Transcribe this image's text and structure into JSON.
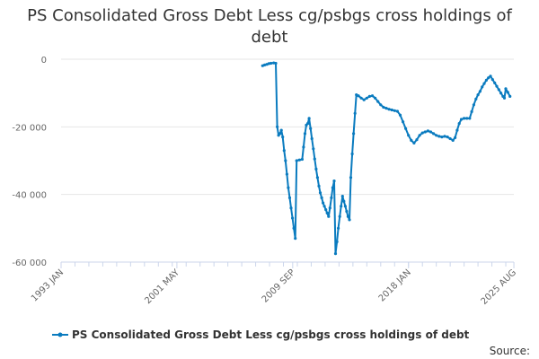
{
  "chart_data": {
    "type": "line",
    "title": "PS Consolidated Gross Debt Less cg/psbgs cross holdings of debt",
    "xlabel": "",
    "ylabel": "",
    "x_ticks": [
      "1993 JAN",
      "2001 MAY",
      "2009 SEP",
      "2018 JAN",
      "2025 AUG"
    ],
    "x_range": [
      1993.0,
      2025.58
    ],
    "ylim": [
      -60000,
      0
    ],
    "y_ticks": [
      0,
      -20000,
      -40000,
      -60000
    ],
    "y_tick_labels": [
      "0",
      "-20 000",
      "-40 000",
      "-60 000"
    ],
    "grid": "horizontal",
    "legend": "bottom",
    "source": "Source:",
    "series": [
      {
        "name": "PS Consolidated Gross Debt Less cg/psbgs cross holdings of debt",
        "color": "#0a7bbf",
        "points": [
          [
            2007.5,
            -1900
          ],
          [
            2007.65,
            -1700
          ],
          [
            2007.8,
            -1500
          ],
          [
            2007.95,
            -1300
          ],
          [
            2008.1,
            -1200
          ],
          [
            2008.3,
            -1100
          ],
          [
            2008.45,
            -1200
          ],
          [
            2008.55,
            -20000
          ],
          [
            2008.65,
            -22500
          ],
          [
            2008.75,
            -22000
          ],
          [
            2008.85,
            -21000
          ],
          [
            2008.95,
            -23000
          ],
          [
            2009.05,
            -27000
          ],
          [
            2009.15,
            -30000
          ],
          [
            2009.25,
            -34000
          ],
          [
            2009.35,
            -38000
          ],
          [
            2009.45,
            -41000
          ],
          [
            2009.55,
            -44000
          ],
          [
            2009.65,
            -47000
          ],
          [
            2009.75,
            -50000
          ],
          [
            2009.85,
            -53000
          ],
          [
            2009.95,
            -30000
          ],
          [
            2010.15,
            -29800
          ],
          [
            2010.35,
            -29600
          ],
          [
            2010.45,
            -26000
          ],
          [
            2010.55,
            -22000
          ],
          [
            2010.65,
            -19500
          ],
          [
            2010.75,
            -19000
          ],
          [
            2010.85,
            -17500
          ],
          [
            2010.95,
            -20500
          ],
          [
            2011.05,
            -23500
          ],
          [
            2011.15,
            -26500
          ],
          [
            2011.25,
            -29500
          ],
          [
            2011.35,
            -32500
          ],
          [
            2011.45,
            -35000
          ],
          [
            2011.55,
            -37500
          ],
          [
            2011.65,
            -39500
          ],
          [
            2011.75,
            -41000
          ],
          [
            2011.85,
            -42500
          ],
          [
            2011.95,
            -43500
          ],
          [
            2012.05,
            -44500
          ],
          [
            2012.15,
            -45500
          ],
          [
            2012.25,
            -46500
          ],
          [
            2012.35,
            -44000
          ],
          [
            2012.45,
            -41000
          ],
          [
            2012.55,
            -38000
          ],
          [
            2012.65,
            -36000
          ],
          [
            2012.75,
            -57500
          ],
          [
            2012.85,
            -54000
          ],
          [
            2012.95,
            -50000
          ],
          [
            2013.05,
            -46500
          ],
          [
            2013.15,
            -43500
          ],
          [
            2013.25,
            -40500
          ],
          [
            2013.35,
            -42000
          ],
          [
            2013.45,
            -43500
          ],
          [
            2013.55,
            -45000
          ],
          [
            2013.65,
            -46500
          ],
          [
            2013.75,
            -47500
          ],
          [
            2013.85,
            -35000
          ],
          [
            2013.95,
            -28000
          ],
          [
            2014.05,
            -22000
          ],
          [
            2014.15,
            -16000
          ],
          [
            2014.25,
            -10500
          ],
          [
            2014.4,
            -10800
          ],
          [
            2014.6,
            -11500
          ],
          [
            2014.8,
            -12000
          ],
          [
            2015.0,
            -11500
          ],
          [
            2015.2,
            -11000
          ],
          [
            2015.4,
            -10800
          ],
          [
            2015.6,
            -11500
          ],
          [
            2015.8,
            -12500
          ],
          [
            2016.0,
            -13500
          ],
          [
            2016.2,
            -14200
          ],
          [
            2016.4,
            -14500
          ],
          [
            2016.6,
            -14800
          ],
          [
            2016.8,
            -15000
          ],
          [
            2017.0,
            -15200
          ],
          [
            2017.2,
            -15400
          ],
          [
            2017.4,
            -16500
          ],
          [
            2017.6,
            -18500
          ],
          [
            2017.8,
            -20500
          ],
          [
            2018.0,
            -22500
          ],
          [
            2018.2,
            -24000
          ],
          [
            2018.4,
            -24800
          ],
          [
            2018.6,
            -23800
          ],
          [
            2018.8,
            -22500
          ],
          [
            2019.0,
            -21800
          ],
          [
            2019.2,
            -21500
          ],
          [
            2019.4,
            -21200
          ],
          [
            2019.6,
            -21500
          ],
          [
            2019.8,
            -22000
          ],
          [
            2020.0,
            -22500
          ],
          [
            2020.2,
            -22800
          ],
          [
            2020.4,
            -23000
          ],
          [
            2020.6,
            -22800
          ],
          [
            2020.8,
            -23000
          ],
          [
            2021.0,
            -23500
          ],
          [
            2021.2,
            -24000
          ],
          [
            2021.35,
            -23200
          ],
          [
            2021.5,
            -21000
          ],
          [
            2021.65,
            -19000
          ],
          [
            2021.8,
            -17800
          ],
          [
            2022.0,
            -17500
          ],
          [
            2022.2,
            -17500
          ],
          [
            2022.4,
            -17500
          ],
          [
            2022.55,
            -15500
          ],
          [
            2022.7,
            -13500
          ],
          [
            2022.85,
            -11800
          ],
          [
            2023.0,
            -10500
          ],
          [
            2023.15,
            -9500
          ],
          [
            2023.3,
            -8200
          ],
          [
            2023.45,
            -7200
          ],
          [
            2023.6,
            -6200
          ],
          [
            2023.75,
            -5500
          ],
          [
            2023.9,
            -5000
          ],
          [
            2024.05,
            -6000
          ],
          [
            2024.2,
            -7000
          ],
          [
            2024.35,
            -8000
          ],
          [
            2024.5,
            -9000
          ],
          [
            2024.65,
            -10000
          ],
          [
            2024.8,
            -11000
          ],
          [
            2024.9,
            -11500
          ],
          [
            2025.0,
            -8700
          ],
          [
            2025.15,
            -9800
          ],
          [
            2025.3,
            -11000
          ]
        ]
      }
    ]
  }
}
